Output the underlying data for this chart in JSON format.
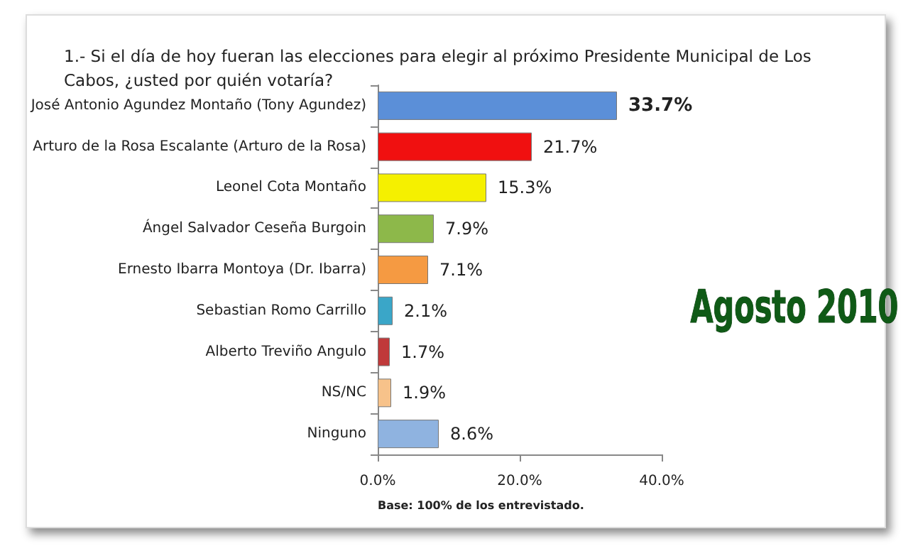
{
  "chart_data": {
    "type": "bar",
    "orientation": "horizontal",
    "title": "1.- Si el día de hoy fueran las elecciones para elegir al próximo Presidente Municipal de Los Cabos, ¿usted por quién votaría?",
    "categories": [
      "José Antonio Agundez Montaño (Tony Agundez)",
      "Arturo de la Rosa Escalante (Arturo de la Rosa)",
      "Leonel Cota Montaño",
      "Ángel Salvador Ceseña Burgoin",
      "Ernesto Ibarra Montoya (Dr. Ibarra)",
      "Sebastian Romo Carrillo",
      "Alberto Treviño Angulo",
      "NS/NC",
      "Ninguno"
    ],
    "values": [
      33.7,
      21.7,
      15.3,
      7.9,
      7.1,
      2.1,
      1.7,
      1.9,
      8.6
    ],
    "value_labels": [
      "33.7%",
      "21.7%",
      "15.3%",
      "7.9%",
      "7.1%",
      "2.1%",
      "1.7%",
      "1.9%",
      "8.6%"
    ],
    "colors": [
      "#5b8fd8",
      "#f01010",
      "#f5f000",
      "#8db84a",
      "#f59a42",
      "#3aa6c8",
      "#c0393a",
      "#f7c28a",
      "#8fb3e0"
    ],
    "xlim": [
      0,
      40
    ],
    "xticks": [
      {
        "value": 0,
        "label": "0.0%"
      },
      {
        "value": 20,
        "label": "20.0%"
      },
      {
        "value": 40,
        "label": "40.0%"
      }
    ],
    "grid": false,
    "annotations": [
      "Base: 100% de los entrevistado.",
      "Agosto 2010"
    ]
  }
}
